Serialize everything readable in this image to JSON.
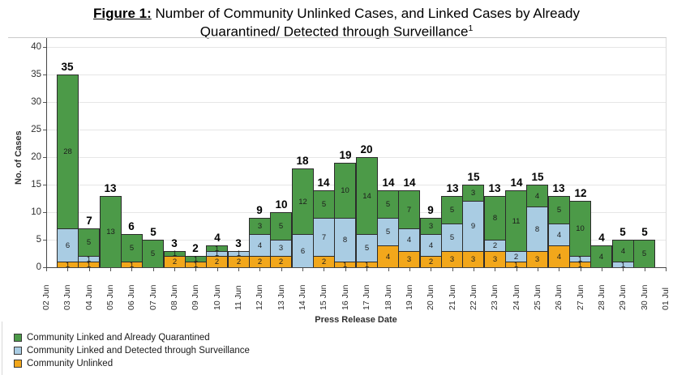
{
  "title": {
    "figure_label": "Figure 1:",
    "line1_rest": " Number of Community Unlinked Cases, and Linked Cases by Already",
    "line2": "Quarantined/ Detected through Surveillance",
    "footnote_marker": "1"
  },
  "chart_data": {
    "type": "bar",
    "stacked": true,
    "title": "Figure 1: Number of Community Unlinked Cases, and Linked Cases by Already Quarantined/ Detected through Surveillance",
    "xlabel": "Press Release Date",
    "ylabel": "No. of Cases",
    "ylim": [
      0,
      40
    ],
    "ytick_interval": 5,
    "grid": true,
    "legend_position": "bottom-left",
    "categories": [
      "02 Jun",
      "03 Jun",
      "04 Jun",
      "05 Jun",
      "06 Jun",
      "07 Jun",
      "08 Jun",
      "09 Jun",
      "10 Jun",
      "11 Jun",
      "12 Jun",
      "13 Jun",
      "14 Jun",
      "15 Jun",
      "16 Jun",
      "17 Jun",
      "18 Jun",
      "19 Jun",
      "20 Jun",
      "21 Jun",
      "22 Jun",
      "23 Jun",
      "24 Jun",
      "25 Jun",
      "26 Jun",
      "27 Jun",
      "28 Jun",
      "29 Jun",
      "30 Jun",
      "01 Jul"
    ],
    "series": [
      {
        "name": "Community Unlinked",
        "color": "#F2A71B",
        "values": [
          null,
          1,
          1,
          0,
          1,
          0,
          2,
          1,
          2,
          2,
          2,
          2,
          0,
          2,
          1,
          1,
          4,
          3,
          2,
          3,
          3,
          3,
          1,
          3,
          4,
          1,
          0,
          0,
          0,
          null
        ]
      },
      {
        "name": "Community Linked and Detected through Surveillance",
        "color": "#A9CCE3",
        "values": [
          null,
          6,
          1,
          0,
          0,
          0,
          0,
          0,
          1,
          1,
          4,
          3,
          6,
          7,
          8,
          5,
          5,
          4,
          4,
          5,
          9,
          2,
          2,
          8,
          4,
          1,
          0,
          1,
          0,
          null
        ]
      },
      {
        "name": "Community Linked and Already Quarantined",
        "color": "#4C9A48",
        "values": [
          null,
          28,
          5,
          13,
          5,
          5,
          1,
          1,
          1,
          0,
          3,
          5,
          12,
          5,
          10,
          14,
          5,
          7,
          3,
          5,
          3,
          8,
          11,
          4,
          5,
          10,
          4,
          4,
          5,
          null
        ]
      }
    ],
    "totals": [
      null,
      35,
      7,
      13,
      6,
      5,
      3,
      2,
      4,
      3,
      9,
      10,
      18,
      14,
      19,
      20,
      14,
      14,
      9,
      13,
      15,
      13,
      14,
      15,
      13,
      12,
      4,
      5,
      5,
      null
    ]
  },
  "legend": {
    "items": [
      {
        "label": "Community Linked and Already Quarantined",
        "color": "#4C9A48"
      },
      {
        "label": "Community Linked and Detected through Surveillance",
        "color": "#A9CCE3"
      },
      {
        "label": "Community Unlinked",
        "color": "#F2A71B"
      }
    ]
  }
}
